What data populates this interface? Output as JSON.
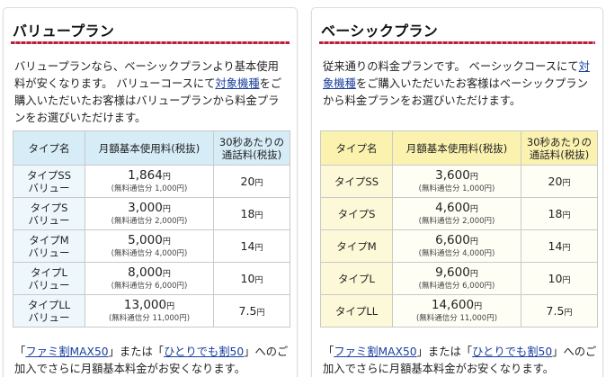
{
  "value_plan": {
    "title": "バリュープラン",
    "desc_before_link": "バリュープランなら、ベーシックプランより基本使用料が安くなります。 バリューコースにて",
    "desc_link": "対象機種",
    "desc_after_link": "をご購入いただいたお客様はバリュープランから料金プランをお選びいただけます。",
    "header": {
      "type": "タイプ名",
      "monthly": "月額基本使用料(税抜)",
      "rate_line1": "30秒あたりの",
      "rate_line2": "通話料(税抜)"
    },
    "rows": [
      {
        "name1": "タイプSS",
        "name2": "バリュー",
        "price": "1,864",
        "sub": "(無料通信分 1,000円)",
        "rate": "20"
      },
      {
        "name1": "タイプS",
        "name2": "バリュー",
        "price": "3,000",
        "sub": "(無料通信分 2,000円)",
        "rate": "18"
      },
      {
        "name1": "タイプM",
        "name2": "バリュー",
        "price": "5,000",
        "sub": "(無料通信分 4,000円)",
        "rate": "14"
      },
      {
        "name1": "タイプL",
        "name2": "バリュー",
        "price": "8,000",
        "sub": "(無料通信分 6,000円)",
        "rate": "10"
      },
      {
        "name1": "タイプLL",
        "name2": "バリュー",
        "price": "13,000",
        "sub": "(無料通信分 11,000円)",
        "rate": "7.5"
      }
    ],
    "foot_open1": "「",
    "foot_link1": "ファミ割MAX50",
    "foot_mid": "」または「",
    "foot_link2": "ひとりでも割50",
    "foot_after": "」へのご加入でさらに月額基本料金がお安くなります。"
  },
  "basic_plan": {
    "title": "ベーシックプラン",
    "desc_before_link": "従来通りの料金プランです。 ベーシックコースにて",
    "desc_link": "対象機種",
    "desc_after_link": "をご購入いただいたお客様はベーシックプランから料金プランをお選びいただけます。",
    "header": {
      "type": "タイプ名",
      "monthly": "月額基本使用料(税抜)",
      "rate_line1": "30秒あたりの",
      "rate_line2": "通話料(税抜)"
    },
    "rows": [
      {
        "name1": "タイプSS",
        "price": "3,600",
        "sub": "(無料通信分 1,000円)",
        "rate": "20"
      },
      {
        "name1": "タイプS",
        "price": "4,600",
        "sub": "(無料通信分 2,000円)",
        "rate": "18"
      },
      {
        "name1": "タイプM",
        "price": "6,600",
        "sub": "(無料通信分 4,000円)",
        "rate": "14"
      },
      {
        "name1": "タイプL",
        "price": "9,600",
        "sub": "(無料通信分 6,000円)",
        "rate": "10"
      },
      {
        "name1": "タイプLL",
        "price": "14,600",
        "sub": "(無料通信分 11,000円)",
        "rate": "7.5"
      }
    ],
    "foot_open1": "「",
    "foot_link1": "ファミ割MAX50",
    "foot_mid": "」または「",
    "foot_link2": "ひとりでも割50",
    "foot_after": "」へのご加入でさらに月額基本料金がお安くなります。"
  },
  "currency_unit": "円",
  "colors": {
    "title_rule": "#b4233a",
    "value_header_bg": "#d6ecf7",
    "basic_header_bg": "#fcf2b0",
    "link": "#1a3f9e"
  }
}
